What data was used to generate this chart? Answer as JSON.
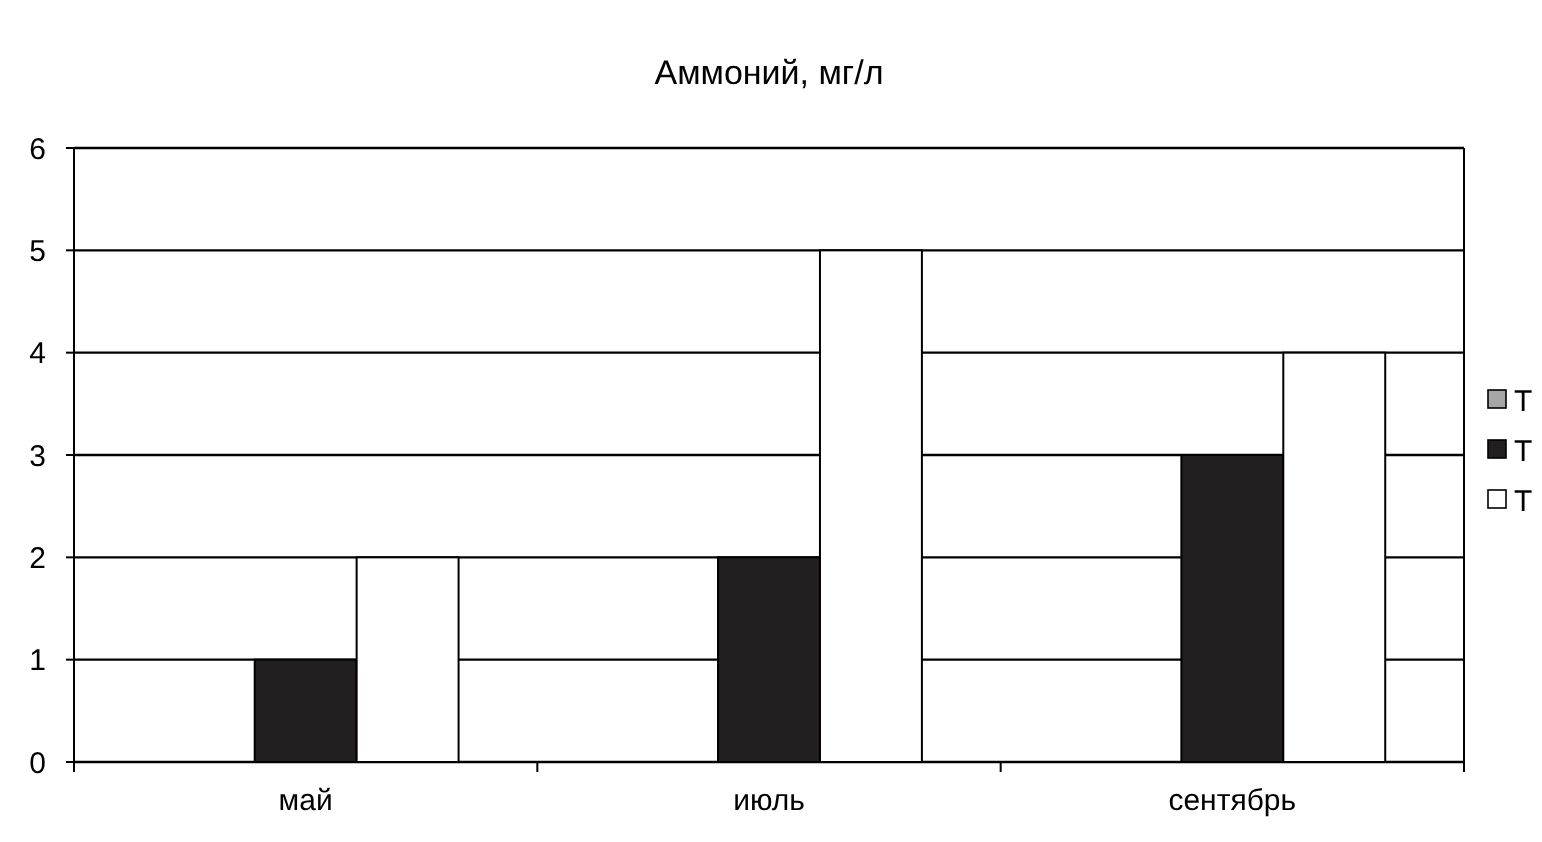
{
  "chart_data": {
    "type": "bar",
    "title": "Аммоний, мг/л",
    "categories": [
      "май",
      "июль",
      "сентябрь"
    ],
    "series": [
      {
        "name": "Т",
        "color": "#a6a6a6",
        "values": [
          0,
          0,
          0
        ]
      },
      {
        "name": "Т",
        "color": "#231f20",
        "values": [
          1,
          2,
          3
        ]
      },
      {
        "name": "Т",
        "color": "#ffffff",
        "values": [
          2,
          5,
          4
        ]
      }
    ],
    "ylim": [
      0,
      6
    ],
    "yticks": [
      0,
      1,
      2,
      3,
      4,
      5,
      6
    ],
    "grid": "y",
    "legend": "right"
  }
}
